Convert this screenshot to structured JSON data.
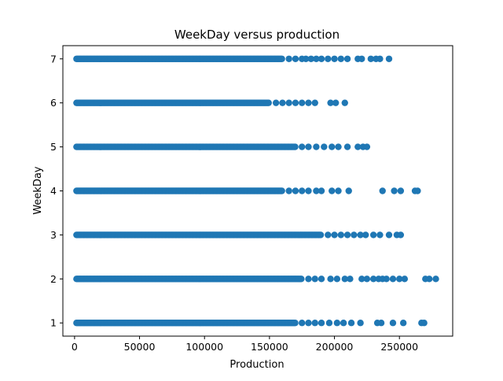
{
  "chart_data": {
    "type": "scatter",
    "title": "WeekDay versus production",
    "xlabel": "Production",
    "ylabel": "WeekDay",
    "xlim": [
      -9000,
      291000
    ],
    "ylim": [
      0.7,
      7.3
    ],
    "xticks": [
      0,
      50000,
      100000,
      150000,
      200000,
      250000
    ],
    "xtick_labels": [
      "0",
      "50000",
      "100000",
      "150000",
      "200000",
      "250000"
    ],
    "yticks": [
      1,
      2,
      3,
      4,
      5,
      6,
      7
    ],
    "ytick_labels": [
      "1",
      "2",
      "3",
      "4",
      "5",
      "6",
      "7"
    ],
    "grid": false,
    "marker_color": "#1f77b4",
    "series": [
      {
        "rows": [
          {
            "y": 7,
            "dense_from": 1500,
            "dense_to": 160000,
            "x": [
              165000,
              170000,
              175000,
              178000,
              182000,
              186000,
              190000,
              195000,
              200000,
              205000,
              210000,
              218000,
              221000,
              228000,
              232000,
              235000,
              242000
            ]
          },
          {
            "y": 6,
            "dense_from": 1500,
            "dense_to": 150000,
            "x": [
              155000,
              160000,
              165000,
              170000,
              175000,
              180000,
              185000,
              197000,
              201000,
              208000
            ]
          },
          {
            "y": 5,
            "dense_from": 1500,
            "dense_to": 170000,
            "x": [
              175000,
              180000,
              186000,
              192000,
              198000,
              203000,
              210000,
              218000,
              222000,
              225000
            ]
          },
          {
            "y": 4,
            "dense_from": 1500,
            "dense_to": 160000,
            "x": [
              165000,
              170000,
              175000,
              180000,
              186000,
              190000,
              198000,
              203000,
              211000,
              237000,
              246000,
              251000,
              262000,
              264000
            ]
          },
          {
            "y": 3,
            "dense_from": 1500,
            "dense_to": 190000,
            "x": [
              195000,
              200000,
              205000,
              210000,
              215000,
              220000,
              224000,
              230000,
              235000,
              242000,
              248000,
              251000
            ]
          },
          {
            "y": 2,
            "dense_from": 1500,
            "dense_to": 175000,
            "x": [
              180000,
              185000,
              190000,
              197000,
              202000,
              208000,
              212000,
              221000,
              225000,
              230000,
              234000,
              237000,
              240000,
              245000,
              250000,
              254000,
              270000,
              273000,
              278000
            ]
          },
          {
            "y": 1,
            "dense_from": 1500,
            "dense_to": 170000,
            "x": [
              175000,
              180000,
              185000,
              190000,
              196000,
              202000,
              207000,
              213000,
              220000,
              233000,
              236000,
              245000,
              253000,
              267000,
              269000
            ]
          }
        ]
      }
    ]
  }
}
